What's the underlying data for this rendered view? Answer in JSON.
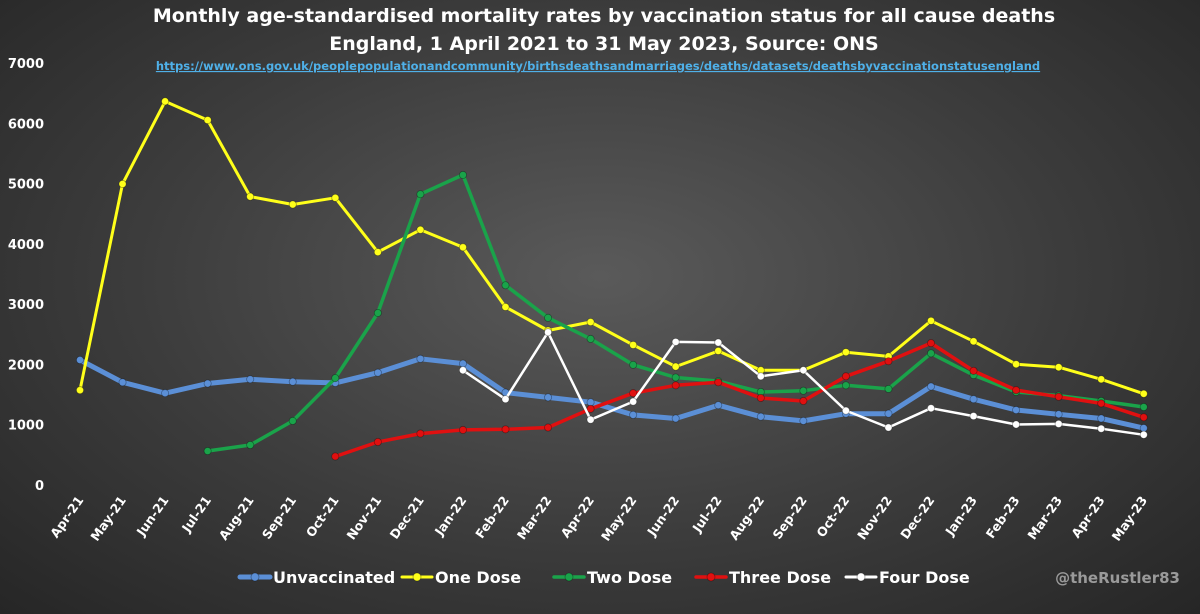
{
  "chart_data": {
    "type": "line",
    "title_line1": "Monthly age-standardised mortality rates by vaccination status for all cause deaths",
    "title_line2": "England, 1 April 2021 to 31 May 2023, Source: ONS",
    "source_url": "https://www.ons.gov.uk/peoplepopulationandcommunity/birthsdeathsandmarriages/deaths/datasets/deathsbyvaccinationstatusengland",
    "ylim": [
      0,
      7000
    ],
    "yticks": [
      0,
      1000,
      2000,
      3000,
      4000,
      5000,
      6000,
      7000
    ],
    "categories": [
      "Apr-21",
      "May-21",
      "Jun-21",
      "Jul-21",
      "Aug-21",
      "Sep-21",
      "Oct-21",
      "Nov-21",
      "Dec-21",
      "Jan-22",
      "Feb-22",
      "Mar-22",
      "Apr-22",
      "May-22",
      "Jun-22",
      "Jul-22",
      "Aug-22",
      "Sep-22",
      "Oct-22",
      "Nov-22",
      "Dec-22",
      "Jan-23",
      "Feb-23",
      "Mar-23",
      "Apr-23",
      "May-23"
    ],
    "series": [
      {
        "name": "Unvaccinated",
        "color": "#5b8fd6",
        "width": 5,
        "values": [
          2090,
          1720,
          1540,
          1700,
          1770,
          1730,
          1710,
          1880,
          2110,
          2030,
          1550,
          1470,
          1390,
          1180,
          1120,
          1340,
          1150,
          1080,
          1200,
          1200,
          1650,
          1440,
          1260,
          1190,
          1120,
          960
        ]
      },
      {
        "name": "One Dose",
        "color": "#ffff1a",
        "width": 3,
        "values": [
          1590,
          5010,
          6380,
          6070,
          4800,
          4670,
          4780,
          3880,
          4250,
          3960,
          2970,
          2580,
          2720,
          2340,
          1980,
          2240,
          1920,
          1920,
          2220,
          2150,
          2740,
          2400,
          2020,
          1970,
          1770,
          1530
        ]
      },
      {
        "name": "Two Dose",
        "color": "#1aa34a",
        "width": 3.5,
        "values": [
          null,
          null,
          null,
          580,
          680,
          1080,
          1790,
          2870,
          4840,
          5160,
          3330,
          2790,
          2440,
          2010,
          1800,
          1740,
          1560,
          1580,
          1670,
          1610,
          2200,
          1840,
          1560,
          1500,
          1410,
          1310
        ]
      },
      {
        "name": "Three Dose",
        "color": "#e01010",
        "width": 3.5,
        "values": [
          null,
          null,
          null,
          null,
          null,
          null,
          490,
          730,
          870,
          930,
          940,
          970,
          1280,
          1540,
          1670,
          1720,
          1460,
          1410,
          1820,
          2070,
          2370,
          1910,
          1590,
          1480,
          1370,
          1140
        ]
      },
      {
        "name": "Four Dose",
        "color": "#ffffff",
        "width": 2.5,
        "values": [
          null,
          null,
          null,
          null,
          null,
          null,
          null,
          null,
          null,
          1920,
          1440,
          2550,
          1100,
          1400,
          2390,
          2380,
          1820,
          1920,
          1250,
          970,
          1290,
          1160,
          1020,
          1030,
          950,
          850
        ]
      }
    ],
    "legend_position": "bottom",
    "watermark": "@theRustler83"
  }
}
